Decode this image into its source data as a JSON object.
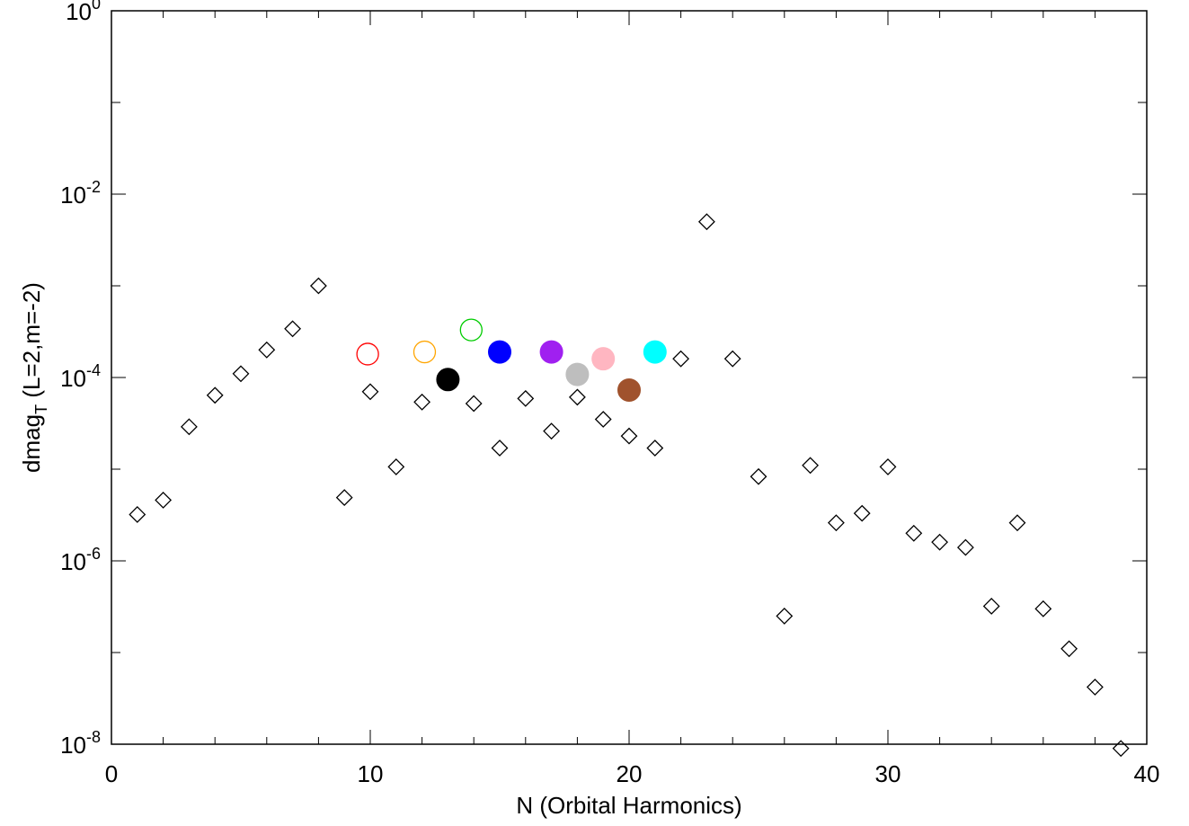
{
  "chart_data": {
    "type": "scatter",
    "title": "",
    "xlabel": "N (Orbital Harmonics)",
    "ylabel": {
      "text": "dmag",
      "subscript": "T",
      "suffix": " (L=2,m=-2)"
    },
    "xlim": [
      0,
      40
    ],
    "ylim": [
      1e-08,
      1
    ],
    "yscale": "log",
    "grid": false,
    "legend": "none",
    "x_ticks": [
      {
        "value": 0,
        "label": "0"
      },
      {
        "value": 10,
        "label": "10"
      },
      {
        "value": 20,
        "label": "20"
      },
      {
        "value": 30,
        "label": "30"
      },
      {
        "value": 40,
        "label": "40"
      }
    ],
    "y_ticks": [
      {
        "value": 1,
        "base": "10",
        "exp": "0"
      },
      {
        "value": 0.01,
        "base": "10",
        "exp": "-2"
      },
      {
        "value": 0.0001,
        "base": "10",
        "exp": "-4"
      },
      {
        "value": 1e-06,
        "base": "10",
        "exp": "-6"
      },
      {
        "value": 1e-08,
        "base": "10",
        "exp": "-8"
      }
    ],
    "series": [
      {
        "marker": "diamond-open",
        "color": "#000000",
        "x": [
          1,
          2,
          3,
          4,
          5,
          6,
          7,
          8,
          9,
          10,
          11,
          12,
          13,
          14,
          15,
          16,
          17,
          18,
          19,
          20,
          21,
          22,
          23,
          24,
          25,
          26,
          27,
          28,
          29,
          30,
          31,
          32,
          33,
          34,
          35,
          36,
          37,
          38,
          39
        ],
        "y": [
          3.2e-06,
          4.6e-06,
          2.9e-05,
          6.4e-05,
          0.00011,
          0.0002,
          0.00034,
          0.001,
          4.9e-06,
          7e-05,
          1.06e-05,
          5.4e-05,
          9.5e-05,
          5.2e-05,
          1.7e-05,
          5.9e-05,
          2.6e-05,
          6.1e-05,
          3.5e-05,
          2.3e-05,
          1.7e-05,
          0.00016,
          0.005,
          0.00016,
          8.3e-06,
          2.5e-07,
          1.1e-05,
          2.6e-06,
          3.3e-06,
          1.06e-05,
          2e-06,
          1.6e-06,
          1.4e-06,
          3.2e-07,
          2.6e-06,
          3e-07,
          1.1e-07,
          4.2e-08,
          9e-09
        ]
      }
    ],
    "highlights": [
      {
        "x": 9.9,
        "y": 0.00018,
        "color": "#ff0000",
        "filled": false
      },
      {
        "x": 12.1,
        "y": 0.00019,
        "color": "#ffa500",
        "filled": false
      },
      {
        "x": 13.0,
        "y": 9.5e-05,
        "color": "#000000",
        "filled": true
      },
      {
        "x": 13.9,
        "y": 0.00033,
        "color": "#00cc00",
        "filled": false
      },
      {
        "x": 15.0,
        "y": 0.00019,
        "color": "#0000ff",
        "filled": true
      },
      {
        "x": 17.0,
        "y": 0.00019,
        "color": "#a020f0",
        "filled": true
      },
      {
        "x": 18.0,
        "y": 0.000108,
        "color": "#bebebe",
        "filled": true
      },
      {
        "x": 19.0,
        "y": 0.00016,
        "color": "#ffb6c1",
        "filled": true
      },
      {
        "x": 20.0,
        "y": 7.3e-05,
        "color": "#a0522d",
        "filled": true
      },
      {
        "x": 21.0,
        "y": 0.00019,
        "color": "#00ffff",
        "filled": true
      }
    ]
  }
}
